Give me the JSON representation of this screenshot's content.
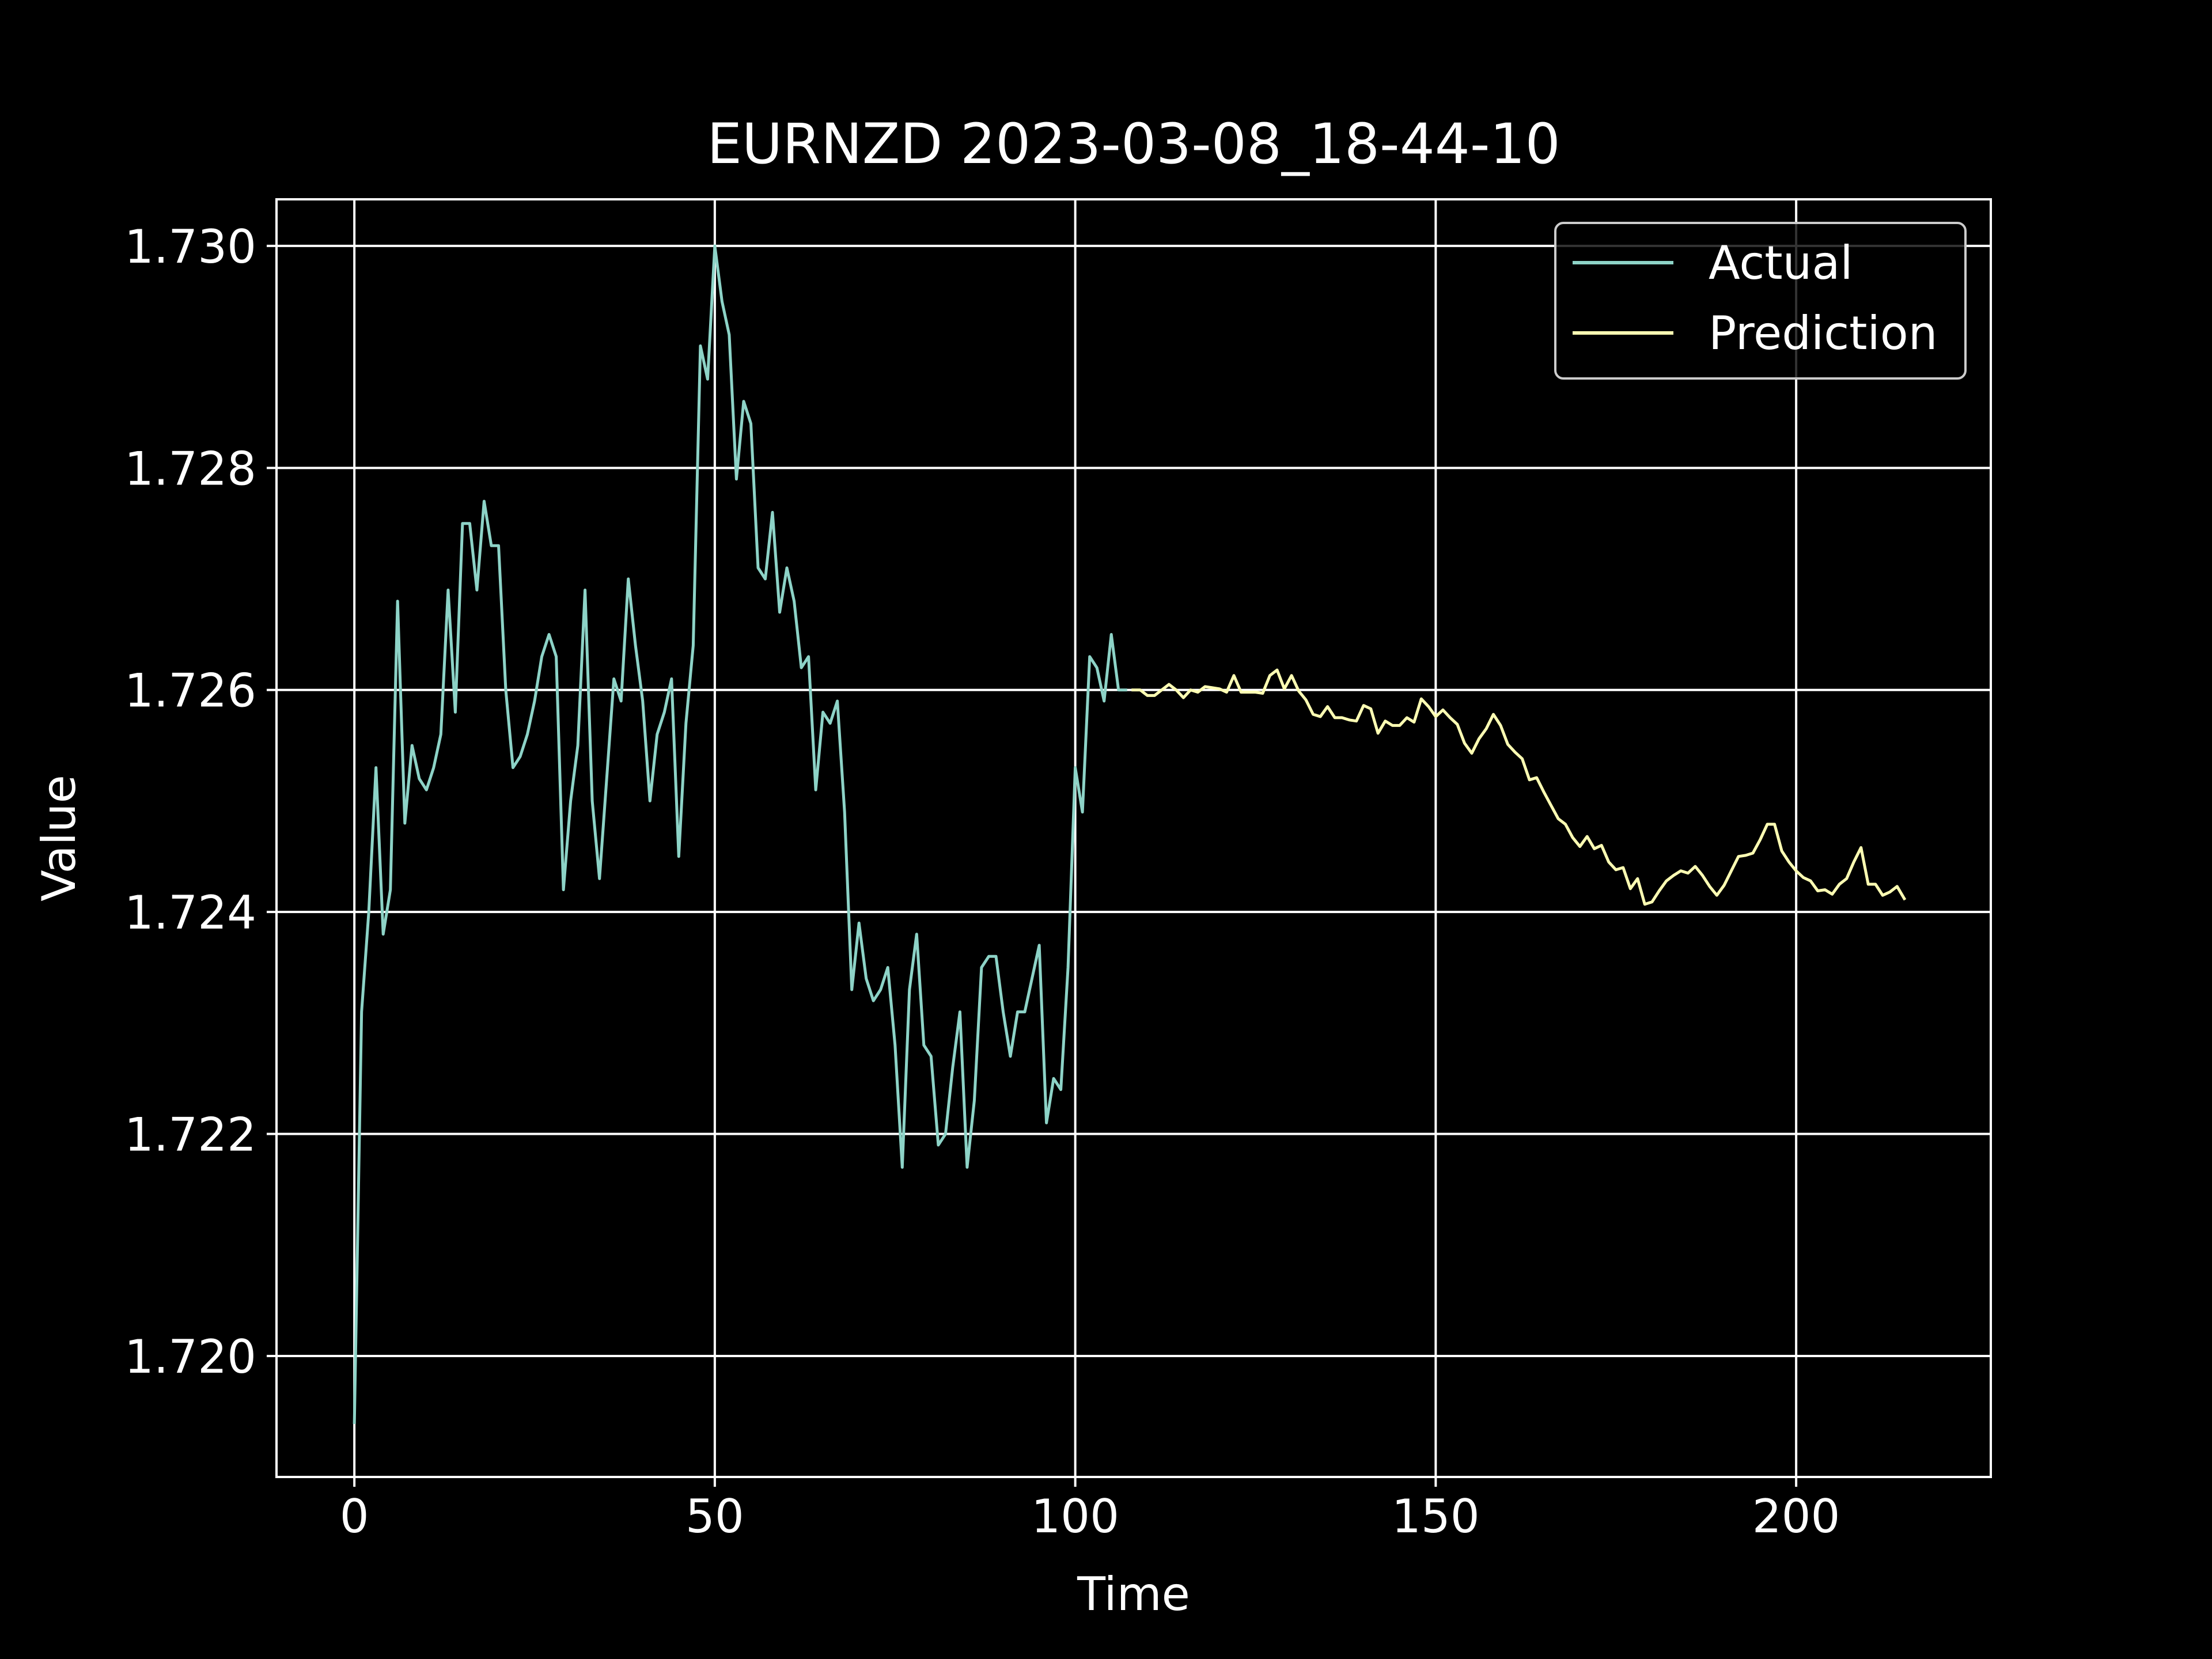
{
  "chart_data": {
    "type": "line",
    "title": "EURNZD 2023-03-08_18-44-10",
    "xlabel": "Time",
    "ylabel": "Value",
    "xlim": [
      -10.8,
      227
    ],
    "ylim": [
      1.71891,
      1.73042
    ],
    "x_ticks": [
      0,
      50,
      100,
      150,
      200
    ],
    "x_tick_labels": [
      "0",
      "50",
      "100",
      "150",
      "200"
    ],
    "y_ticks": [
      1.72,
      1.722,
      1.724,
      1.726,
      1.728,
      1.73
    ],
    "y_tick_labels": [
      "1.720",
      "1.722",
      "1.724",
      "1.726",
      "1.728",
      "1.730"
    ],
    "grid": true,
    "legend": "top-right",
    "colors": {
      "background": "#000000",
      "axes": "#ffffff",
      "grid": "#ffffff"
    },
    "series": [
      {
        "name": "Actual",
        "color": "#8dd3c7",
        "x_start": 0,
        "values": [
          1.7194,
          1.7231,
          1.724,
          1.7253,
          1.7238,
          1.7242,
          1.7268,
          1.7248,
          1.7255,
          1.7252,
          1.7251,
          1.7253,
          1.7256,
          1.7269,
          1.7258,
          1.7275,
          1.7275,
          1.7269,
          1.7277,
          1.7273,
          1.7273,
          1.726,
          1.7253,
          1.7254,
          1.7256,
          1.7259,
          1.7263,
          1.7265,
          1.7263,
          1.7242,
          1.725,
          1.7255,
          1.7269,
          1.725,
          1.7243,
          1.7252,
          1.7261,
          1.7259,
          1.727,
          1.7264,
          1.7259,
          1.725,
          1.7256,
          1.7258,
          1.7261,
          1.7245,
          1.7257,
          1.7264,
          1.7291,
          1.7288,
          1.73,
          1.7295,
          1.7292,
          1.7279,
          1.7286,
          1.7284,
          1.7271,
          1.727,
          1.7276,
          1.7267,
          1.7271,
          1.7268,
          1.7262,
          1.7263,
          1.7251,
          1.7258,
          1.7257,
          1.7259,
          1.7249,
          1.7233,
          1.7239,
          1.7234,
          1.7232,
          1.7233,
          1.7235,
          1.7228,
          1.7217,
          1.7233,
          1.7238,
          1.7228,
          1.7227,
          1.7219,
          1.722,
          1.7226,
          1.7231,
          1.7217,
          1.7223,
          1.7235,
          1.7236,
          1.7236,
          1.7231,
          1.7227,
          1.7231,
          1.7231,
          1.7234,
          1.7237,
          1.7221,
          1.7225,
          1.7224,
          1.7235,
          1.7253,
          1.7249,
          1.7263,
          1.7262,
          1.7259,
          1.7265,
          1.726,
          1.726
        ]
      },
      {
        "name": "Prediction",
        "color": "#ffffb3",
        "x_start": 108,
        "values": [
          1.726,
          1.726,
          1.72595,
          1.72595,
          1.726,
          1.72605,
          1.726,
          1.72593,
          1.726,
          1.72598,
          1.72603,
          1.72602,
          1.72601,
          1.72598,
          1.72613,
          1.72598,
          1.72598,
          1.72598,
          1.72597,
          1.72613,
          1.72618,
          1.72601,
          1.72613,
          1.72599,
          1.72591,
          1.72578,
          1.72576,
          1.72585,
          1.72575,
          1.72575,
          1.72573,
          1.72572,
          1.72586,
          1.72583,
          1.72561,
          1.72572,
          1.72568,
          1.72568,
          1.72575,
          1.72571,
          1.72592,
          1.72585,
          1.72576,
          1.72582,
          1.72575,
          1.72569,
          1.72552,
          1.72543,
          1.72556,
          1.72565,
          1.72578,
          1.72568,
          1.72551,
          1.72544,
          1.72538,
          1.72519,
          1.72521,
          1.72508,
          1.72496,
          1.72484,
          1.72479,
          1.72467,
          1.72459,
          1.72468,
          1.72457,
          1.7246,
          1.72445,
          1.72438,
          1.7244,
          1.72421,
          1.7243,
          1.72407,
          1.72409,
          1.72419,
          1.72428,
          1.72433,
          1.72437,
          1.72435,
          1.72441,
          1.72433,
          1.72423,
          1.72415,
          1.72424,
          1.72437,
          1.7245,
          1.72451,
          1.72453,
          1.72465,
          1.72479,
          1.72479,
          1.72455,
          1.72445,
          1.72437,
          1.72431,
          1.72428,
          1.72419,
          1.7242,
          1.72416,
          1.72425,
          1.7243,
          1.72445,
          1.72458,
          1.72425,
          1.72425,
          1.72415,
          1.72418,
          1.72423,
          1.72412
        ]
      }
    ]
  }
}
